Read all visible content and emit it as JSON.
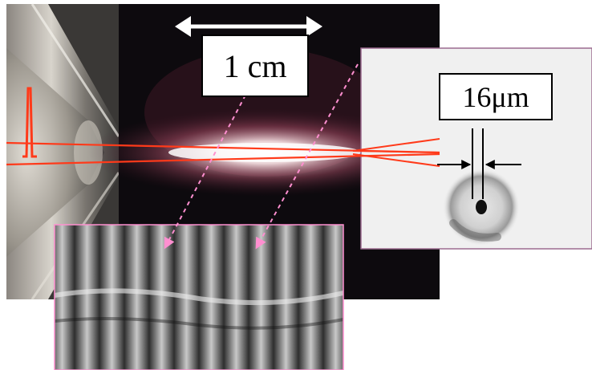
{
  "annotations": {
    "scale_bar": "1 cm",
    "focal_spot": "16μm"
  },
  "colors": {
    "laser_beam": "#ff3a1a",
    "fringe_arrows": "#ff8fd0",
    "spot_panel": "#f0f0f0",
    "background": "#ffffff"
  }
}
